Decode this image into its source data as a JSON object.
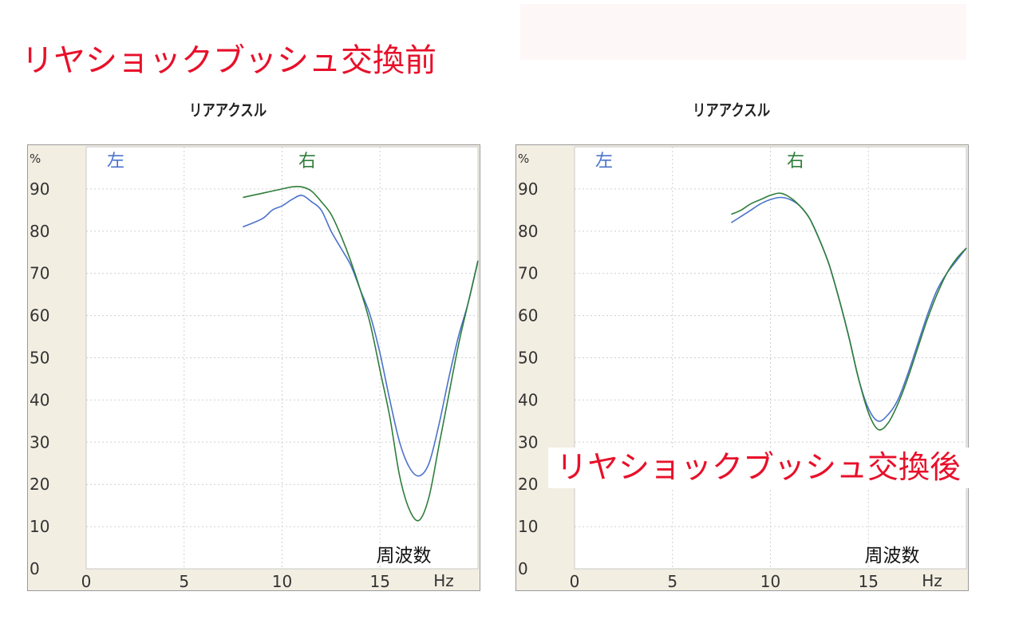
{
  "header": {
    "title_before": "リヤショックブッシュ交換前",
    "title_after": "リヤショックブッシュ交換後",
    "title_color": "#e8102a",
    "box_color": "#fef7f8"
  },
  "style": {
    "left_color": "#4a72cc",
    "right_color": "#2f7d3a",
    "panel_bg": "#f3eee2",
    "grid_color": "#cfcfcf",
    "text_color": "#333333"
  },
  "chart_data": [
    {
      "type": "line",
      "title": "リアアクスル",
      "xlabel": "Hz",
      "ylabel": "%",
      "annotation": "周波数",
      "xlim": [
        0,
        20
      ],
      "ylim": [
        0,
        100
      ],
      "x_ticks": [
        0,
        5,
        10,
        15
      ],
      "y_ticks": [
        0,
        10,
        20,
        30,
        40,
        50,
        60,
        70,
        80,
        90
      ],
      "grid": true,
      "legend": "top",
      "series": [
        {
          "name": "左",
          "x": [
            8,
            9,
            9.5,
            10,
            10.5,
            11,
            11.5,
            12,
            12.5,
            13,
            13.5,
            14,
            14.5,
            15,
            15.5,
            16,
            16.5,
            17,
            17.5,
            18,
            18.5,
            19,
            19.5,
            20
          ],
          "y": [
            81,
            83,
            85,
            86,
            87.5,
            88.5,
            87,
            85,
            80,
            76,
            72,
            66,
            60,
            51,
            40,
            30,
            24,
            22,
            25,
            34,
            45,
            55,
            63,
            73
          ]
        },
        {
          "name": "右",
          "x": [
            8,
            8.5,
            9,
            9.5,
            10,
            10.5,
            11,
            11.5,
            12,
            12.5,
            13,
            13.5,
            14,
            14.5,
            15,
            15.5,
            16,
            16.5,
            17,
            17.5,
            18,
            18.5,
            19,
            19.5,
            20
          ],
          "y": [
            88,
            88.5,
            89,
            89.5,
            90,
            90.5,
            90.5,
            89.5,
            87,
            84,
            79,
            73,
            66,
            58,
            47,
            36,
            22,
            14,
            11.5,
            17,
            29,
            41,
            53,
            63,
            73
          ]
        }
      ]
    },
    {
      "type": "line",
      "title": "リアアクスル",
      "xlabel": "Hz",
      "ylabel": "%",
      "annotation": "周波数",
      "xlim": [
        0,
        20
      ],
      "ylim": [
        0,
        100
      ],
      "x_ticks": [
        0,
        5,
        10,
        15
      ],
      "y_ticks": [
        0,
        10,
        20,
        30,
        40,
        50,
        60,
        70,
        80,
        90
      ],
      "grid": true,
      "legend": "top",
      "series": [
        {
          "name": "左",
          "x": [
            8,
            8.5,
            9,
            9.5,
            10,
            10.5,
            11,
            11.5,
            12,
            12.5,
            13,
            13.5,
            14,
            14.5,
            15,
            15.5,
            16,
            16.5,
            17,
            17.5,
            18,
            18.5,
            19,
            19.5,
            20
          ],
          "y": [
            82,
            83.5,
            85,
            86.5,
            87.5,
            88,
            87.5,
            86,
            83,
            78,
            72,
            64,
            55,
            45,
            38,
            35,
            36.5,
            40,
            46,
            53,
            60,
            66,
            70,
            73,
            76
          ]
        },
        {
          "name": "右",
          "x": [
            8,
            8.5,
            9,
            9.5,
            10,
            10.5,
            11,
            11.5,
            12,
            12.5,
            13,
            13.5,
            14,
            14.5,
            15,
            15.5,
            16,
            16.5,
            17,
            17.5,
            18,
            18.5,
            19,
            19.5,
            20
          ],
          "y": [
            84,
            85,
            86.5,
            87.5,
            88.5,
            89,
            88,
            86,
            83,
            78,
            72,
            64,
            55,
            45,
            37,
            33,
            34.5,
            39,
            45,
            52,
            59,
            65,
            70,
            73.5,
            76
          ]
        }
      ]
    }
  ]
}
